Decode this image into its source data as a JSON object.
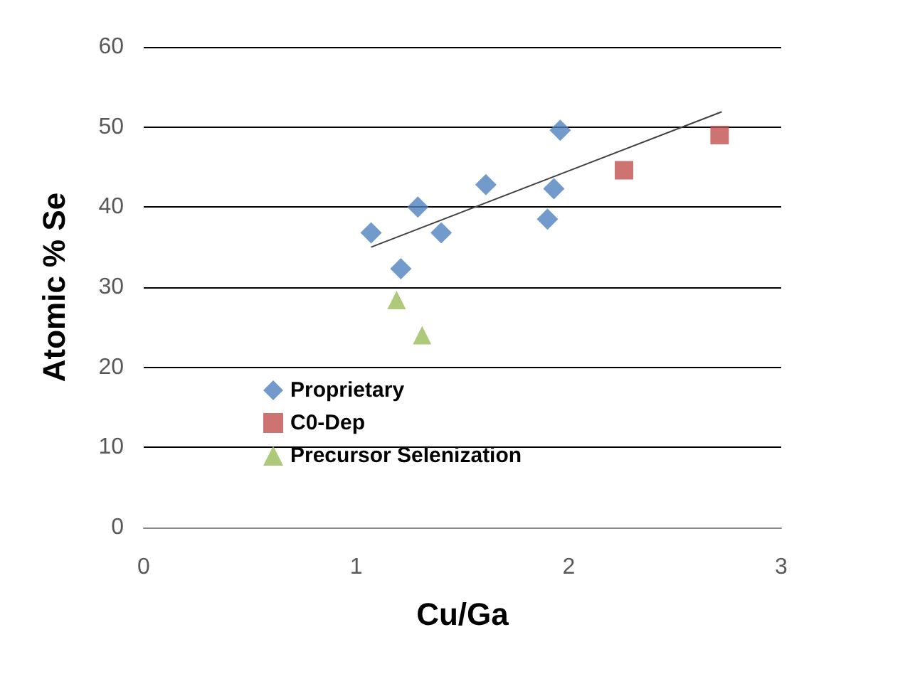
{
  "chart_data": {
    "type": "scatter",
    "xlabel": "Cu/Ga",
    "ylabel": "Atomic % Se",
    "xlim": [
      0,
      3
    ],
    "xticks": [
      0,
      1,
      2,
      3
    ],
    "ylim": [
      0,
      60
    ],
    "yticks": [
      0,
      10,
      20,
      30,
      40,
      50,
      60
    ],
    "grid": "y",
    "legend": "bottom left",
    "series": [
      {
        "name": "Proprietary",
        "color": "#4f81bd",
        "marker": "diamond",
        "x": [
          1.07,
          1.21,
          1.29,
          1.4,
          1.61,
          1.9,
          1.93,
          1.96
        ],
        "values": [
          36.8,
          32.3,
          40,
          36.8,
          42.8,
          38.5,
          42.3,
          49.6
        ]
      },
      {
        "name": "C0-Dep",
        "color": "#c0504d",
        "marker": "square",
        "x": [
          2.26,
          2.71
        ],
        "values": [
          44.6,
          49
        ]
      },
      {
        "name": "Precursor Selenization",
        "color": "#9bbb59",
        "marker": "triangle",
        "x": [
          1.19,
          1.31
        ],
        "values": [
          28.4,
          24
        ]
      },
      {
        "type": "line",
        "color": "#404040",
        "marker": "none",
        "x": [
          1.07,
          2.72
        ],
        "values": [
          35,
          51.9
        ]
      }
    ]
  }
}
